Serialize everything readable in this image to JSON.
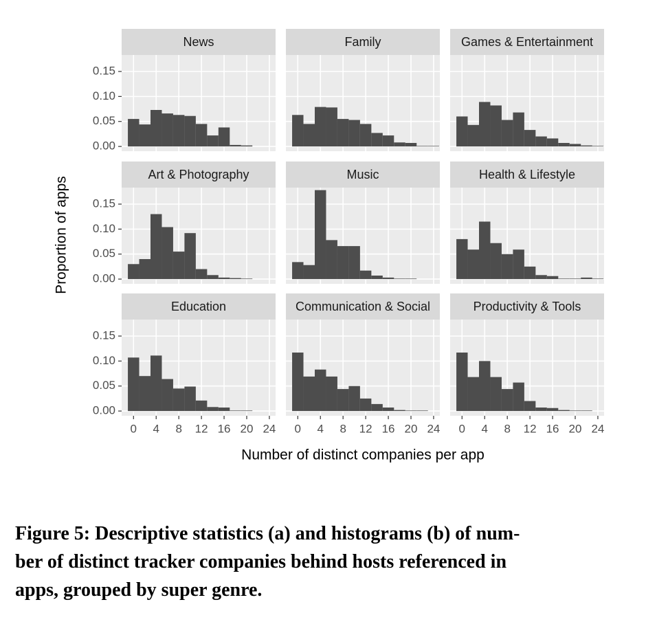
{
  "x_label": "Number of distinct companies per app",
  "y_label": "Proportion of apps",
  "caption": [
    "Figure 5: Descriptive statistics (a) and histograms (b) of num-",
    "ber of distinct tracker companies behind hosts referenced in",
    "apps, grouped by super genre."
  ],
  "chart_data": [
    {
      "type": "histogram",
      "title": "News",
      "bins": [
        -1,
        1,
        3,
        5,
        7,
        9,
        11,
        13,
        15,
        17,
        19,
        21,
        23,
        25
      ],
      "values": [
        0.055,
        0.044,
        0.073,
        0.066,
        0.063,
        0.061,
        0.045,
        0.022,
        0.038,
        0.003,
        0.002,
        0,
        0
      ],
      "color": "#4d4d4d",
      "xlim": [
        -2.1,
        25.1
      ],
      "ylim": [
        -0.0095,
        0.183
      ],
      "xticks": [
        0,
        4,
        8,
        12,
        16,
        20,
        24
      ],
      "yticks": [
        {
          "value": 0,
          "label": "0.00"
        },
        {
          "value": 0.05,
          "label": "0.05"
        },
        {
          "value": 0.1,
          "label": "0.10"
        },
        {
          "value": 0.15,
          "label": "0.15"
        }
      ],
      "grid": true
    },
    {
      "type": "histogram",
      "title": "Family",
      "bins": [
        -1,
        1,
        3,
        5,
        7,
        9,
        11,
        13,
        15,
        17,
        19,
        21,
        23,
        25
      ],
      "values": [
        0.063,
        0.045,
        0.079,
        0.078,
        0.055,
        0.053,
        0.045,
        0.027,
        0.022,
        0.008,
        0.007,
        0.001,
        0.001
      ],
      "color": "#4d4d4d",
      "xlim": [
        -2.1,
        25.1
      ],
      "ylim": [
        -0.0095,
        0.183
      ],
      "xticks": [
        0,
        4,
        8,
        12,
        16,
        20,
        24
      ],
      "yticks": [
        {
          "value": 0,
          "label": "0.00"
        },
        {
          "value": 0.05,
          "label": "0.05"
        },
        {
          "value": 0.1,
          "label": "0.10"
        },
        {
          "value": 0.15,
          "label": "0.15"
        }
      ],
      "grid": true
    },
    {
      "type": "histogram",
      "title": "Games & Entertainment",
      "bins": [
        -1,
        1,
        3,
        5,
        7,
        9,
        11,
        13,
        15,
        17,
        19,
        21,
        23,
        25
      ],
      "values": [
        0.06,
        0.043,
        0.089,
        0.082,
        0.053,
        0.068,
        0.033,
        0.02,
        0.016,
        0.007,
        0.005,
        0.002,
        0.001
      ],
      "color": "#4d4d4d",
      "xlim": [
        -2.1,
        25.1
      ],
      "ylim": [
        -0.0095,
        0.183
      ],
      "xticks": [
        0,
        4,
        8,
        12,
        16,
        20,
        24
      ],
      "yticks": [
        {
          "value": 0,
          "label": "0.00"
        },
        {
          "value": 0.05,
          "label": "0.05"
        },
        {
          "value": 0.1,
          "label": "0.10"
        },
        {
          "value": 0.15,
          "label": "0.15"
        }
      ],
      "grid": true
    },
    {
      "type": "histogram",
      "title": "Art & Photography",
      "bins": [
        -1,
        1,
        3,
        5,
        7,
        9,
        11,
        13,
        15,
        17,
        19,
        21,
        23,
        25
      ],
      "values": [
        0.03,
        0.04,
        0.13,
        0.104,
        0.055,
        0.092,
        0.02,
        0.008,
        0.003,
        0.002,
        0.001,
        0,
        0
      ],
      "color": "#4d4d4d",
      "xlim": [
        -2.1,
        25.1
      ],
      "ylim": [
        -0.0095,
        0.183
      ],
      "xticks": [
        0,
        4,
        8,
        12,
        16,
        20,
        24
      ],
      "yticks": [
        {
          "value": 0,
          "label": "0.00"
        },
        {
          "value": 0.05,
          "label": "0.05"
        },
        {
          "value": 0.1,
          "label": "0.10"
        },
        {
          "value": 0.15,
          "label": "0.15"
        }
      ],
      "grid": true
    },
    {
      "type": "histogram",
      "title": "Music",
      "bins": [
        -1,
        1,
        3,
        5,
        7,
        9,
        11,
        13,
        15,
        17,
        19,
        21,
        23,
        25
      ],
      "values": [
        0.034,
        0.028,
        0.178,
        0.078,
        0.066,
        0.066,
        0.017,
        0.007,
        0.003,
        0.001,
        0.001,
        0,
        0
      ],
      "color": "#4d4d4d",
      "xlim": [
        -2.1,
        25.1
      ],
      "ylim": [
        -0.0095,
        0.183
      ],
      "xticks": [
        0,
        4,
        8,
        12,
        16,
        20,
        24
      ],
      "yticks": [
        {
          "value": 0,
          "label": "0.00"
        },
        {
          "value": 0.05,
          "label": "0.05"
        },
        {
          "value": 0.1,
          "label": "0.10"
        },
        {
          "value": 0.15,
          "label": "0.15"
        }
      ],
      "grid": true
    },
    {
      "type": "histogram",
      "title": "Health & Lifestyle",
      "bins": [
        -1,
        1,
        3,
        5,
        7,
        9,
        11,
        13,
        15,
        17,
        19,
        21,
        23,
        25
      ],
      "values": [
        0.08,
        0.059,
        0.115,
        0.072,
        0.05,
        0.059,
        0.025,
        0.008,
        0.006,
        0.001,
        0.001,
        0.003,
        0.001
      ],
      "color": "#4d4d4d",
      "xlim": [
        -2.1,
        25.1
      ],
      "ylim": [
        -0.0095,
        0.183
      ],
      "xticks": [
        0,
        4,
        8,
        12,
        16,
        20,
        24
      ],
      "yticks": [
        {
          "value": 0,
          "label": "0.00"
        },
        {
          "value": 0.05,
          "label": "0.05"
        },
        {
          "value": 0.1,
          "label": "0.10"
        },
        {
          "value": 0.15,
          "label": "0.15"
        }
      ],
      "grid": true
    },
    {
      "type": "histogram",
      "title": "Education",
      "bins": [
        -1,
        1,
        3,
        5,
        7,
        9,
        11,
        13,
        15,
        17,
        19,
        21,
        23,
        25
      ],
      "values": [
        0.107,
        0.07,
        0.111,
        0.064,
        0.045,
        0.049,
        0.021,
        0.008,
        0.007,
        0.001,
        0.001,
        0,
        0
      ],
      "color": "#4d4d4d",
      "xlim": [
        -2.1,
        25.1
      ],
      "ylim": [
        -0.0095,
        0.183
      ],
      "xticks": [
        0,
        4,
        8,
        12,
        16,
        20,
        24
      ],
      "yticks": [
        {
          "value": 0,
          "label": "0.00"
        },
        {
          "value": 0.05,
          "label": "0.05"
        },
        {
          "value": 0.1,
          "label": "0.10"
        },
        {
          "value": 0.15,
          "label": "0.15"
        }
      ],
      "grid": true
    },
    {
      "type": "histogram",
      "title": "Communication & Social",
      "bins": [
        -1,
        1,
        3,
        5,
        7,
        9,
        11,
        13,
        15,
        17,
        19,
        21,
        23,
        25
      ],
      "values": [
        0.117,
        0.069,
        0.083,
        0.069,
        0.044,
        0.05,
        0.025,
        0.014,
        0.007,
        0.002,
        0.001,
        0.001,
        0
      ],
      "color": "#4d4d4d",
      "xlim": [
        -2.1,
        25.1
      ],
      "ylim": [
        -0.0095,
        0.183
      ],
      "xticks": [
        0,
        4,
        8,
        12,
        16,
        20,
        24
      ],
      "yticks": [
        {
          "value": 0,
          "label": "0.00"
        },
        {
          "value": 0.05,
          "label": "0.05"
        },
        {
          "value": 0.1,
          "label": "0.10"
        },
        {
          "value": 0.15,
          "label": "0.15"
        }
      ],
      "grid": true
    },
    {
      "type": "histogram",
      "title": "Productivity & Tools",
      "bins": [
        -1,
        1,
        3,
        5,
        7,
        9,
        11,
        13,
        15,
        17,
        19,
        21,
        23,
        25
      ],
      "values": [
        0.117,
        0.068,
        0.1,
        0.068,
        0.044,
        0.057,
        0.02,
        0.007,
        0.006,
        0.002,
        0.001,
        0.001,
        0
      ],
      "color": "#4d4d4d",
      "xlim": [
        -2.1,
        25.1
      ],
      "ylim": [
        -0.0095,
        0.183
      ],
      "xticks": [
        0,
        4,
        8,
        12,
        16,
        20,
        24
      ],
      "yticks": [
        {
          "value": 0,
          "label": "0.00"
        },
        {
          "value": 0.05,
          "label": "0.05"
        },
        {
          "value": 0.1,
          "label": "0.10"
        },
        {
          "value": 0.15,
          "label": "0.15"
        }
      ],
      "grid": true
    }
  ]
}
